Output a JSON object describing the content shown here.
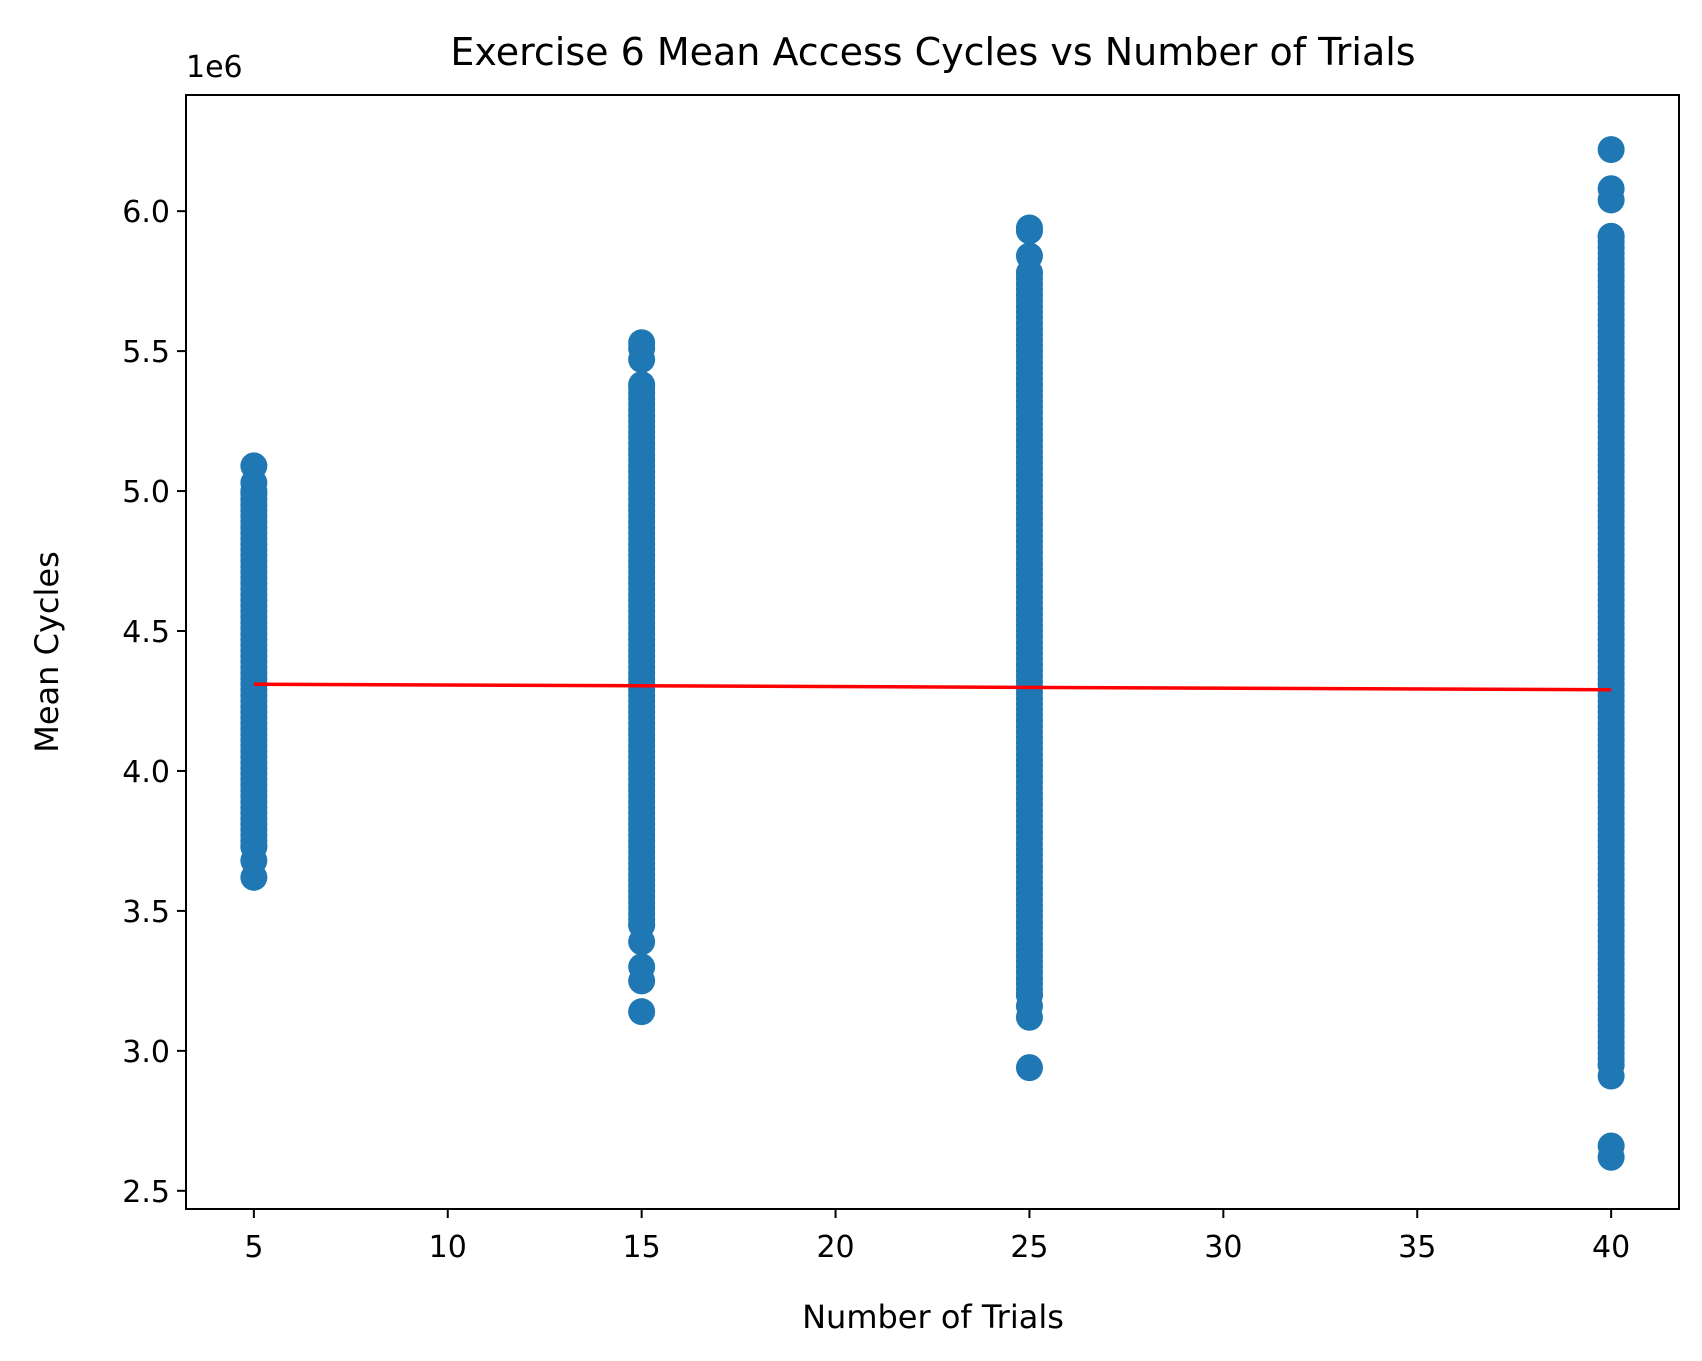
{
  "chart_data": {
    "type": "scatter",
    "title": "Exercise 6 Mean Access Cycles vs Number of Trials",
    "xlabel": "Number of Trials",
    "ylabel": "Mean Cycles",
    "y_offset_label": "1e6",
    "y_scale_factor": 1000000,
    "xlim": [
      3.25,
      41.75
    ],
    "ylim": [
      2.435,
      6.415
    ],
    "x_ticks": [
      5,
      10,
      15,
      20,
      25,
      30,
      35,
      40
    ],
    "x_tick_labels": [
      "5",
      "10",
      "15",
      "20",
      "25",
      "30",
      "35",
      "40"
    ],
    "y_ticks": [
      2.5,
      3.0,
      3.5,
      4.0,
      4.5,
      5.0,
      5.5,
      6.0
    ],
    "y_tick_labels": [
      "2.5",
      "3.0",
      "3.5",
      "4.0",
      "4.5",
      "5.0",
      "5.5",
      "6.0"
    ],
    "grid": false,
    "legend": "none",
    "colors": {
      "points": "#1f77b4",
      "fit_line": "#ff0000"
    },
    "groups": [
      {
        "x": 5,
        "y_min": 3.62,
        "y_max": 5.09,
        "extremes": [
          3.62,
          3.68,
          3.73,
          5.0,
          5.03,
          5.09
        ]
      },
      {
        "x": 15,
        "y_min": 3.14,
        "y_max": 5.53,
        "extremes": [
          3.14,
          3.25,
          3.3,
          3.39,
          3.45,
          5.38,
          5.47,
          5.51,
          5.53
        ]
      },
      {
        "x": 25,
        "y_min": 2.94,
        "y_max": 5.94,
        "extremes": [
          2.94,
          3.12,
          3.16,
          3.2,
          5.78,
          5.84,
          5.93,
          5.94
        ]
      },
      {
        "x": 40,
        "y_min": 2.62,
        "y_max": 6.22,
        "extremes": [
          2.62,
          2.66,
          2.91,
          2.95,
          5.91,
          6.04,
          6.08,
          6.22
        ]
      }
    ],
    "fit_line": {
      "x": [
        5,
        40
      ],
      "y": [
        4.31,
        4.29
      ]
    }
  }
}
